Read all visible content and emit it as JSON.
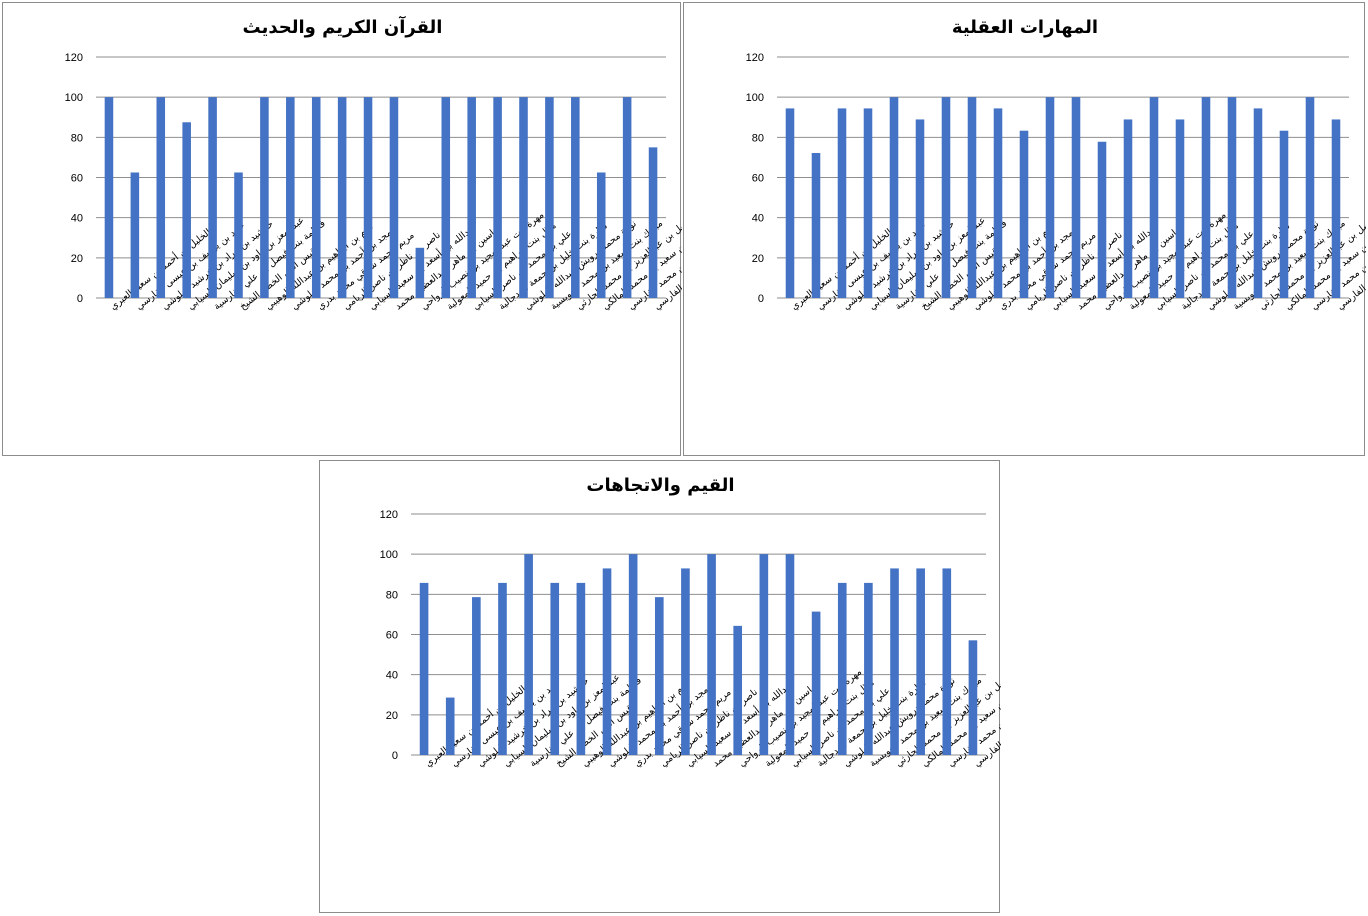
{
  "chart_data": [
    {
      "type": "bar",
      "title": "القرآن الكريم والحديث",
      "ylim": [
        0,
        120
      ],
      "yticks": [
        0,
        20,
        40,
        60,
        80,
        100,
        120
      ],
      "grid": true,
      "legend": "none",
      "color": "#4472c4",
      "categories": [
        "الخليل بن أحمد بن سعيد العبري",
        "حمد بن يوسف بن عيسى الفارسي",
        "خرشيد بن مراد بن خرشيد البلوشي",
        "عبدالمعز بن داود بن سليمان السيابي",
        "فاطمة بنت فيصل بن علي الفارسية",
        "قيس أنس الخضر الشيخ",
        "كرم بن ابراهيم بن عبدالله الوهيبي",
        "مجد بن أحمد بن محمد البلوشي",
        "مريم محمد شوقي محمد بدري",
        "ناصر بن ناظر بن ناصر الريامي",
        "عبدالله بن أسعد بن سعيد السيابي",
        "ياسين بن ماهر عبدالعظيم محمد",
        "مهرة بنت عبدالمجيد بن نصيب الرواحي",
        "هلال بنت ابراهيم بن حميد المعولية",
        "علي بن محمد بن ناصر السيابي",
        "سارة بنت خليل بن جمعة الزدجالية",
        "نورة محمد درويش عبدالله البلوشي",
        "مبارك بنت سعيد بن محمد العويسية",
        "فيصل بن عبدالعزيز بن محمد الحارثي",
        "مازن بن سعيد بن محمد المالكي",
        "عبدالله بن خالد بن محمد الفارسي",
        "علي بن عبدالخليل بن علي الفارسي"
      ],
      "values": [
        100,
        62.5,
        100,
        87.5,
        100,
        62.5,
        100,
        100,
        100,
        100,
        100,
        100,
        25,
        100,
        100,
        100,
        100,
        100,
        100,
        62.5,
        100,
        75
      ]
    },
    {
      "type": "bar",
      "title": "المهارات العقلية",
      "ylim": [
        0,
        120
      ],
      "yticks": [
        0,
        20,
        40,
        60,
        80,
        100,
        120
      ],
      "grid": true,
      "legend": "none",
      "color": "#4472c4",
      "categories": [
        "الخليل بن أحمد بن سعيد العبري",
        "حمد بن يوسف بن عيسى الفارسي",
        "خرشيد بن مراد بن خرشيد البلوشي",
        "عبدالمعز بن داود بن سليمان السيابي",
        "فاطمة بنت فيصل بن علي الفارسية",
        "قيس أنس الخضر الشيخ",
        "كرم بن ابراهيم بن عبدالله الوهيبي",
        "مجد بن أحمد بن محمد البلوشي",
        "مريم محمد شوقي محمد بدري",
        "ناصر بن ناظر بن ناصر الريامي",
        "عبدالله بن أسعد بن سعيد السيابي",
        "ياسين بن ماهر عبدالعظيم محمد",
        "مهرة بنت عبدالمجيد بن نصيب الرواحي",
        "هلال بنت ابراهيم بن حميد المعولية",
        "علي بن محمد بن ناصر السيابي",
        "سارة بنت خليل بن جمعة الزدجالية",
        "نورة محمد درويش عبدالله البلوشي",
        "مبارك بنت سعيد بن محمد العويسية",
        "فيصل بن عبدالعزيز بن محمد الحارثي",
        "مازن بن سعيد بن محمد المالكي",
        "عبدالله بن خالد بن محمد الفارسي",
        "علي بن عبدالخليل بن علي الفارسي"
      ],
      "values": [
        94.4,
        72.2,
        94.4,
        94.4,
        100,
        88.9,
        100,
        100,
        94.4,
        83.3,
        100,
        100,
        77.8,
        88.9,
        100,
        88.9,
        100,
        100,
        94.4,
        83.3,
        100,
        88.9
      ]
    },
    {
      "type": "bar",
      "title": "القيم والاتجاهات",
      "ylim": [
        0,
        120
      ],
      "yticks": [
        0,
        20,
        40,
        60,
        80,
        100,
        120
      ],
      "grid": true,
      "legend": "none",
      "color": "#4472c4",
      "categories": [
        "الخليل بن أحمد بن سعيد العبري",
        "حمد بن يوسف بن عيسى الفارسي",
        "خرشيد بن مراد بن خرشيد البلوشي",
        "عبدالمعز بن داود بن سليمان السيابي",
        "فاطمة بنت فيصل بن علي الفارسية",
        "قيس أنس الخضر الشيخ",
        "كرم بن ابراهيم بن عبدالله الوهيبي",
        "مجد بن أحمد بن محمد البلوشي",
        "مريم محمد شوقي محمد بدري",
        "ناصر بن ناظر بن ناصر الريامي",
        "عبدالله بن أسعد بن سعيد السيابي",
        "ياسين بن ماهر عبدالعظيم محمد",
        "مهرة بنت عبدالمجيد بن نصيب الرواحي",
        "هلال بنت ابراهيم بن حميد المعولية",
        "علي بن محمد بن ناصر السيابي",
        "سارة بنت خليل بن جمعة الزدجالية",
        "نورة محمد درويش عبدالله البلوشي",
        "مبارك بنت سعيد بن محمد العويسية",
        "فيصل بن عبدالعزيز بن محمد الحارثي",
        "مازن بن سعيد بن محمد المالكي",
        "عبدالله بن خالد بن محمد الفارسي",
        "علي بن عبدالخليل بن علي الفارسي"
      ],
      "values": [
        85.7,
        28.6,
        78.6,
        85.7,
        100,
        85.7,
        85.7,
        92.9,
        100,
        78.6,
        92.9,
        100,
        64.3,
        100,
        100,
        71.4,
        85.7,
        85.7,
        92.9,
        92.9,
        92.9,
        57.1
      ]
    }
  ]
}
